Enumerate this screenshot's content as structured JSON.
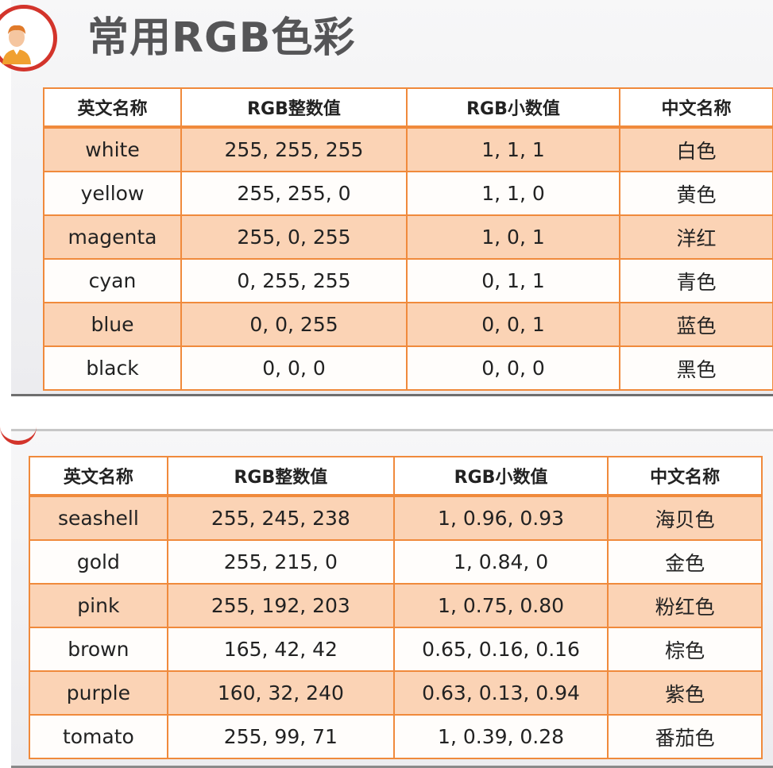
{
  "title": "常用RGB色彩",
  "colors": {
    "accent_red": "#d3342b",
    "border_orange": "#f08a3c",
    "row_fill": "#fbd3b5"
  },
  "icons": {
    "avatar": "person-avatar-icon"
  },
  "table1": {
    "headers": [
      "英文名称",
      "RGB整数值",
      "RGB小数值",
      "中文名称"
    ],
    "rows": [
      [
        "white",
        "255, 255, 255",
        "1, 1, 1",
        "白色"
      ],
      [
        "yellow",
        "255, 255, 0",
        "1, 1, 0",
        "黄色"
      ],
      [
        "magenta",
        "255, 0, 255",
        "1, 0, 1",
        "洋红"
      ],
      [
        "cyan",
        "0, 255, 255",
        "0, 1, 1",
        "青色"
      ],
      [
        "blue",
        "0, 0, 255",
        "0, 0, 1",
        "蓝色"
      ],
      [
        "black",
        "0, 0, 0",
        "0, 0, 0",
        "黑色"
      ]
    ]
  },
  "table2": {
    "headers": [
      "英文名称",
      "RGB整数值",
      "RGB小数值",
      "中文名称"
    ],
    "rows": [
      [
        "seashell",
        "255, 245, 238",
        "1, 0.96, 0.93",
        "海贝色"
      ],
      [
        "gold",
        "255, 215, 0",
        "1, 0.84, 0",
        "金色"
      ],
      [
        "pink",
        "255, 192, 203",
        "1, 0.75, 0.80",
        "粉红色"
      ],
      [
        "brown",
        "165, 42, 42",
        "0.65, 0.16, 0.16",
        "棕色"
      ],
      [
        "purple",
        "160, 32, 240",
        "0.63, 0.13, 0.94",
        "紫色"
      ],
      [
        "tomato",
        "255, 99, 71",
        "1, 0.39, 0.28",
        "番茄色"
      ]
    ]
  }
}
